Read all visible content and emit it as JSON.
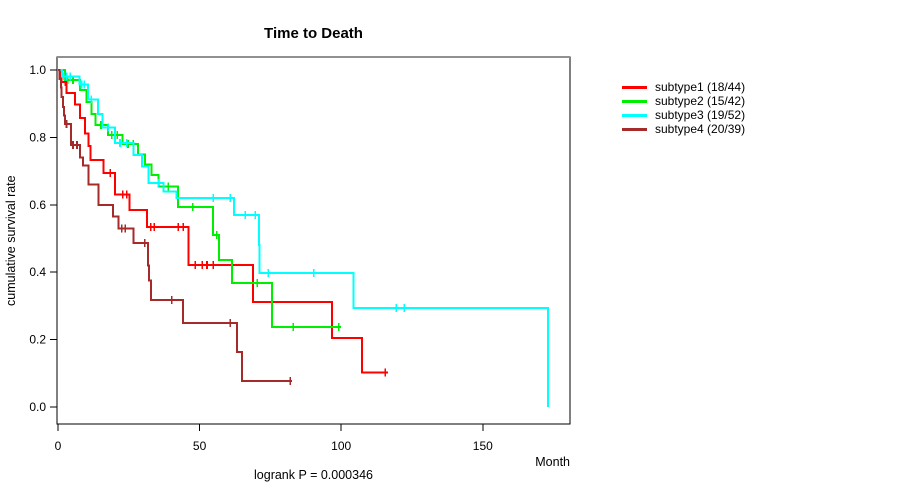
{
  "title": "Time to Death",
  "annotation": "logrank P = 0.000346",
  "axes": {
    "x": {
      "label": "Month",
      "ticks": [
        {
          "label": "0",
          "value": 0
        },
        {
          "label": "50",
          "value": 50
        },
        {
          "label": "100",
          "value": 100
        },
        {
          "label": "150",
          "value": 150
        }
      ]
    },
    "y": {
      "label": "cumulative survival rate",
      "ticks": [
        {
          "label": "0.0",
          "value": 0.0
        },
        {
          "label": "0.2",
          "value": 0.2
        },
        {
          "label": "0.4",
          "value": 0.4
        },
        {
          "label": "0.6",
          "value": 0.6
        },
        {
          "label": "0.8",
          "value": 0.8
        },
        {
          "label": "1.0",
          "value": 1.0
        }
      ]
    }
  },
  "chart_data": {
    "type": "line",
    "subtype": "kaplan-meier-step",
    "title": "Time to Death",
    "xlabel": "Month",
    "ylabel": "cumulative survival rate",
    "annotation": "logrank P = 0.000346",
    "xlim": [
      0,
      190
    ],
    "ylim": [
      0,
      1.04
    ],
    "grid": false,
    "legend_position": "right-outside",
    "series": [
      {
        "name": "subtype1",
        "legend_label": "subtype1 (18/44)",
        "events": 18,
        "n": 44,
        "color": "#ff0000",
        "end_month": 116.5,
        "steps": [
          [
            0,
            1.0
          ],
          [
            1.3,
            0.965
          ],
          [
            3,
            0.932
          ],
          [
            6,
            0.898
          ],
          [
            7.8,
            0.858
          ],
          [
            9.5,
            0.812
          ],
          [
            10.7,
            0.775
          ],
          [
            11.4,
            0.733
          ],
          [
            16.1,
            0.694
          ],
          [
            20.2,
            0.63
          ],
          [
            25.2,
            0.585
          ],
          [
            31.4,
            0.534
          ],
          [
            46,
            0.421
          ],
          [
            68.9,
            0.312
          ],
          [
            96.8,
            0.205
          ],
          [
            107.3,
            0.103
          ]
        ],
        "censors": [
          [
            2.5,
            0.965
          ],
          [
            18.4,
            0.694
          ],
          [
            22.8,
            0.63
          ],
          [
            24.3,
            0.63
          ],
          [
            32.8,
            0.534
          ],
          [
            34,
            0.534
          ],
          [
            42.4,
            0.534
          ],
          [
            44.2,
            0.534
          ],
          [
            48.5,
            0.421
          ],
          [
            50.9,
            0.421
          ],
          [
            52.6,
            0.421
          ],
          [
            54.8,
            0.421
          ],
          [
            115.5,
            0.103
          ]
        ]
      },
      {
        "name": "subtype2",
        "legend_label": "subtype2 (15/42)",
        "events": 15,
        "n": 42,
        "color": "#00ee00",
        "end_month": 100,
        "steps": [
          [
            0,
            1.0
          ],
          [
            2.5,
            0.97
          ],
          [
            7.8,
            0.94
          ],
          [
            10,
            0.905
          ],
          [
            11.9,
            0.87
          ],
          [
            13.3,
            0.837
          ],
          [
            17.7,
            0.807
          ],
          [
            22.8,
            0.78
          ],
          [
            28.3,
            0.75
          ],
          [
            30.7,
            0.72
          ],
          [
            33.1,
            0.688
          ],
          [
            35.5,
            0.654
          ],
          [
            42.4,
            0.594
          ],
          [
            54.8,
            0.51
          ],
          [
            56.9,
            0.436
          ],
          [
            61.4,
            0.368
          ],
          [
            75.5,
            0.238
          ]
        ],
        "censors": [
          [
            3.5,
            0.97
          ],
          [
            5.3,
            0.97
          ],
          [
            15.2,
            0.837
          ],
          [
            19,
            0.807
          ],
          [
            20.9,
            0.807
          ],
          [
            24.7,
            0.78
          ],
          [
            26.6,
            0.78
          ],
          [
            39,
            0.654
          ],
          [
            47.6,
            0.594
          ],
          [
            56.1,
            0.51
          ],
          [
            70.4,
            0.368
          ],
          [
            83.1,
            0.238
          ],
          [
            99.1,
            0.238
          ]
        ]
      },
      {
        "name": "subtype3",
        "legend_label": "subtype3 (19/52)",
        "events": 19,
        "n": 52,
        "color": "#00ffff",
        "end_month": 173.1,
        "steps": [
          [
            0,
            1.0
          ],
          [
            1.4,
            0.981
          ],
          [
            7.6,
            0.957
          ],
          [
            10.6,
            0.913
          ],
          [
            14.2,
            0.87
          ],
          [
            15.7,
            0.83
          ],
          [
            20.2,
            0.783
          ],
          [
            26.6,
            0.748
          ],
          [
            29.6,
            0.713
          ],
          [
            31.9,
            0.665
          ],
          [
            37.2,
            0.639
          ],
          [
            41.9,
            0.62
          ],
          [
            62.2,
            0.57
          ],
          [
            70.9,
            0.48
          ],
          [
            71.2,
            0.397
          ],
          [
            104.3,
            0.294
          ],
          [
            173.1,
            0.0
          ]
        ],
        "censors": [
          [
            2.1,
            0.981
          ],
          [
            3.1,
            0.981
          ],
          [
            4.3,
            0.981
          ],
          [
            8.3,
            0.957
          ],
          [
            9.3,
            0.957
          ],
          [
            11.7,
            0.913
          ],
          [
            17.8,
            0.83
          ],
          [
            21.9,
            0.783
          ],
          [
            24.3,
            0.783
          ],
          [
            35.4,
            0.665
          ],
          [
            54.8,
            0.62
          ],
          [
            60.8,
            0.62
          ],
          [
            66.1,
            0.57
          ],
          [
            69.6,
            0.57
          ],
          [
            74.2,
            0.397
          ],
          [
            90.3,
            0.397
          ],
          [
            119.4,
            0.294
          ],
          [
            122.2,
            0.294
          ]
        ]
      },
      {
        "name": "subtype4",
        "legend_label": "subtype4 (20/39)",
        "events": 20,
        "n": 39,
        "color": "#a52a2a",
        "end_month": 82.7,
        "steps": [
          [
            0,
            1.0
          ],
          [
            0.6,
            0.974
          ],
          [
            1,
            0.948
          ],
          [
            1.3,
            0.92
          ],
          [
            1.7,
            0.89
          ],
          [
            2.1,
            0.865
          ],
          [
            2.5,
            0.84
          ],
          [
            4.6,
            0.777
          ],
          [
            7.8,
            0.74
          ],
          [
            8.9,
            0.717
          ],
          [
            10.7,
            0.66
          ],
          [
            14.3,
            0.6
          ],
          [
            19.5,
            0.565
          ],
          [
            21.3,
            0.53
          ],
          [
            26.6,
            0.486
          ],
          [
            31.7,
            0.42
          ],
          [
            32.2,
            0.375
          ],
          [
            32.9,
            0.318
          ],
          [
            44.2,
            0.249
          ],
          [
            63.2,
            0.163
          ],
          [
            65,
            0.077
          ]
        ],
        "censors": [
          [
            3,
            0.84
          ],
          [
            5.3,
            0.777
          ],
          [
            6.7,
            0.777
          ],
          [
            22.5,
            0.53
          ],
          [
            23.7,
            0.53
          ],
          [
            30.7,
            0.486
          ],
          [
            40.1,
            0.318
          ],
          [
            60.8,
            0.249
          ],
          [
            82,
            0.077
          ]
        ]
      }
    ]
  }
}
